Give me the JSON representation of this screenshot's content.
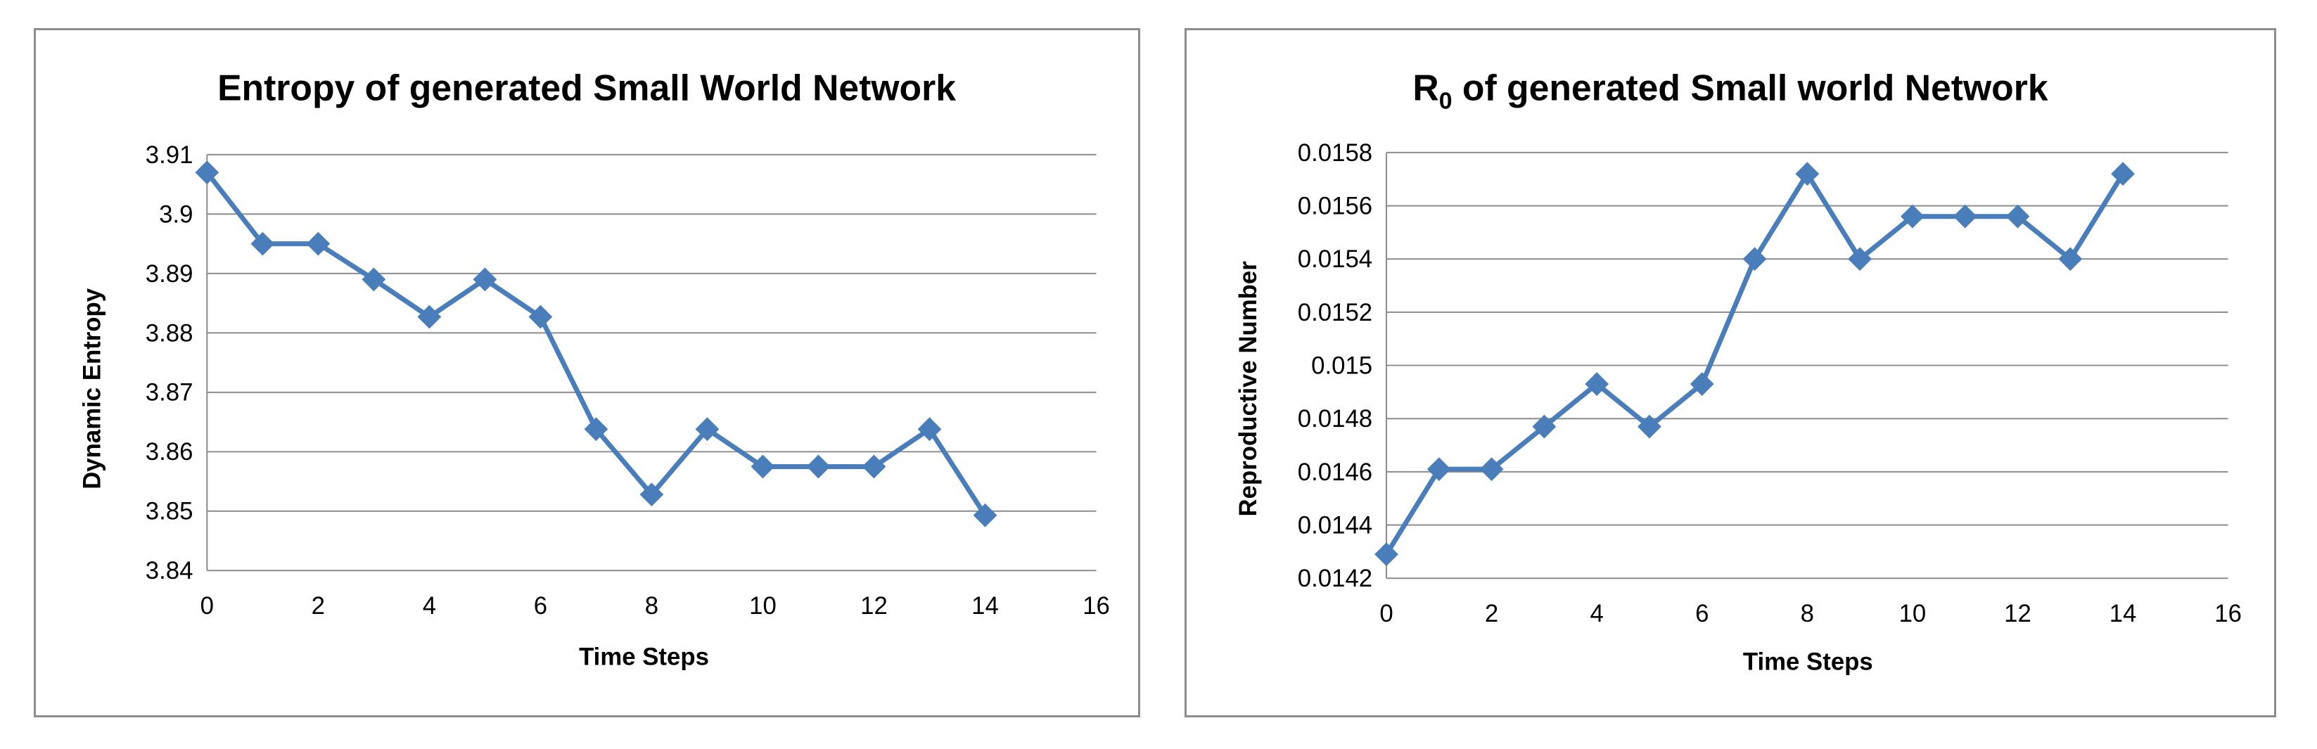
{
  "chart_data": [
    {
      "type": "line",
      "title": "Entropy of generated Small World Network",
      "xlabel": "Time Steps",
      "ylabel": "Dynamic Entropy",
      "xlim": [
        0,
        16
      ],
      "ylim": [
        3.84,
        3.91
      ],
      "x_ticks": [
        "0",
        "2",
        "4",
        "6",
        "8",
        "10",
        "12",
        "14",
        "16"
      ],
      "y_ticks": [
        "3.84",
        "3.85",
        "3.86",
        "3.87",
        "3.88",
        "3.89",
        "3.9",
        "3.91"
      ],
      "grid": true,
      "legend": "none",
      "marker": "diamond",
      "color": "#4a7ebb",
      "series": [
        {
          "x": [
            0,
            1,
            2,
            3,
            4,
            5,
            6,
            7,
            8,
            9,
            10,
            11,
            12,
            13,
            14
          ],
          "values": [
            3.907,
            3.895,
            3.895,
            3.889,
            3.8827,
            3.889,
            3.8827,
            3.8638,
            3.8528,
            3.8638,
            3.8575,
            3.8575,
            3.8575,
            3.8638,
            3.8493
          ]
        }
      ]
    },
    {
      "type": "line",
      "title": "R",
      "title_subscript": "0",
      "title_rest": " of generated Small world Network",
      "xlabel": "Time Steps",
      "ylabel": "Reproductive Number",
      "xlim": [
        0,
        16
      ],
      "ylim": [
        0.0142,
        0.0158
      ],
      "x_ticks": [
        "0",
        "2",
        "4",
        "6",
        "8",
        "10",
        "12",
        "14",
        "16"
      ],
      "y_ticks": [
        "0.0142",
        "0.0144",
        "0.0146",
        "0.0148",
        "0.015",
        "0.0152",
        "0.0154",
        "0.0156",
        "0.0158"
      ],
      "grid": true,
      "legend": "none",
      "marker": "diamond",
      "color": "#4a7ebb",
      "series": [
        {
          "x": [
            0,
            1,
            2,
            3,
            4,
            5,
            6,
            7,
            8,
            9,
            10,
            11,
            12,
            13,
            14
          ],
          "values": [
            0.01429,
            0.01461,
            0.01461,
            0.01477,
            0.01493,
            0.01477,
            0.01493,
            0.0154,
            0.01572,
            0.0154,
            0.01556,
            0.01556,
            0.01556,
            0.0154,
            0.01572
          ]
        }
      ]
    }
  ]
}
